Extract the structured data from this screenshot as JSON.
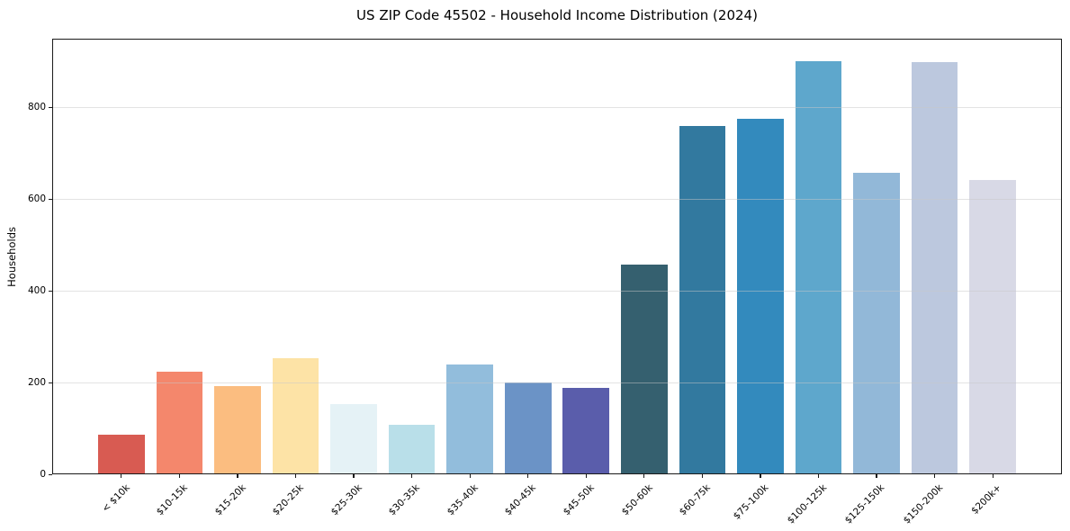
{
  "chart_data": {
    "type": "bar",
    "title": "US ZIP Code 45502 - Household Income Distribution (2024)",
    "xlabel": "",
    "ylabel": "Households",
    "categories": [
      "< $10k",
      "$10-15k",
      "$15-20k",
      "$20-25k",
      "$25-30k",
      "$30-35k",
      "$35-40k",
      "$40-45k",
      "$45-50k",
      "$50-60k",
      "$60-75k",
      "$75-100k",
      "$100-125k",
      "$125-150k",
      "$150-200k",
      "$200k+"
    ],
    "values": [
      86,
      224,
      192,
      253,
      153,
      108,
      239,
      200,
      188,
      458,
      759,
      776,
      901,
      657,
      898,
      641
    ],
    "bar_colors": [
      "#d85b52",
      "#f4876c",
      "#fbbd80",
      "#fde3a6",
      "#e5f2f6",
      "#b9dfe9",
      "#92bddc",
      "#6b93c6",
      "#5a5dab",
      "#35606f",
      "#32799f",
      "#338abd",
      "#5ea7cc",
      "#92b8d8",
      "#bcc8de",
      "#d8d9e6"
    ],
    "ylim": [
      0,
      950
    ],
    "yticks": [
      0,
      200,
      400,
      600,
      800
    ],
    "xtick_rotation_deg": 45,
    "grid": "horizontal",
    "grid_on_top": true,
    "grid_color": "#c8c8c8",
    "grid_alpha": 0.5,
    "axis_color": "#1a1a1a",
    "background_color": "#ffffff",
    "legend": "none"
  }
}
